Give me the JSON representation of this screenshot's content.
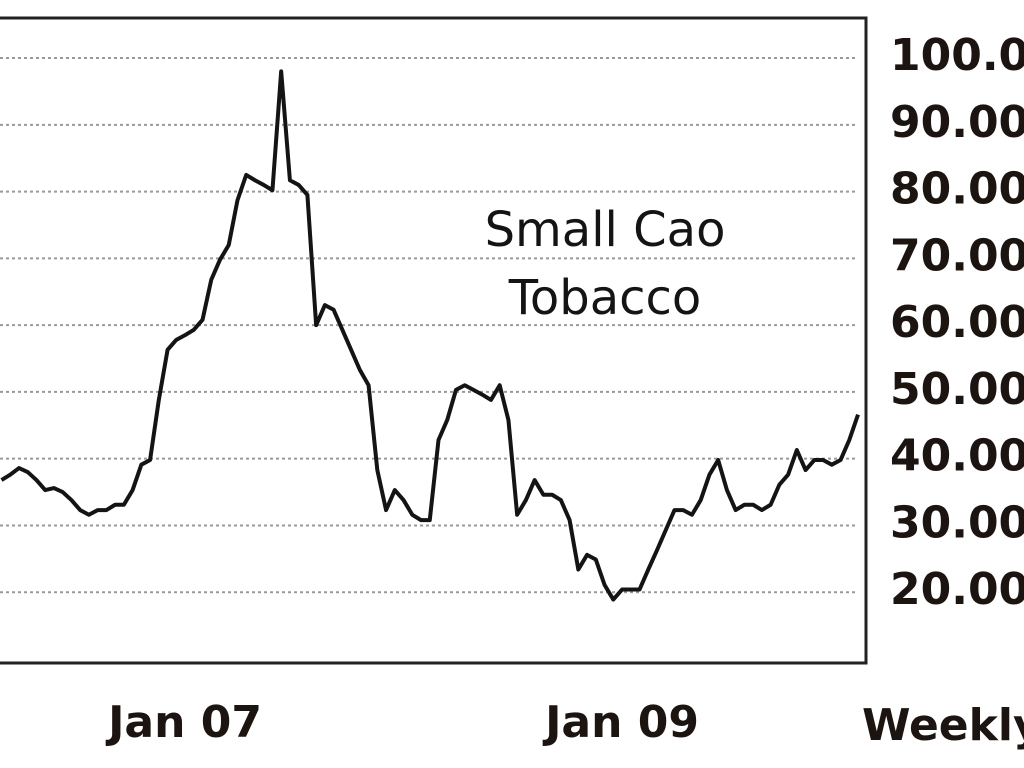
{
  "chart_data": {
    "type": "line",
    "title": "Small Cao Tobacco",
    "frequency_label": "Weekly",
    "categories": [
      null,
      null,
      null,
      null,
      null,
      null,
      null,
      null,
      null,
      null,
      null,
      null,
      null,
      null,
      null,
      null,
      null,
      null,
      null,
      null,
      null,
      "Jan 07",
      null,
      null,
      null,
      null,
      null,
      null,
      null,
      null,
      null,
      null,
      null,
      null,
      null,
      null,
      null,
      null,
      null,
      null,
      null,
      null,
      null,
      null,
      null,
      null,
      null,
      null,
      null,
      null,
      null,
      null,
      null,
      null,
      null,
      null,
      null,
      null,
      null,
      null,
      null,
      null,
      null,
      null,
      null,
      null,
      null,
      null,
      null,
      null,
      null,
      "Jan 09",
      null,
      null,
      null,
      null,
      null,
      null,
      null,
      null,
      null,
      null,
      null,
      null,
      null,
      null,
      null,
      null,
      null,
      null,
      null,
      null,
      null,
      null,
      null,
      null,
      null,
      null,
      null
    ],
    "series": [
      {
        "name": "Small Cao Tobacco",
        "color": "#141414",
        "values": [
          36.8,
          37.6,
          38.6,
          38.0,
          36.8,
          35.3,
          35.6,
          35.0,
          33.8,
          32.3,
          31.6,
          32.3,
          32.3,
          33.1,
          33.1,
          35.3,
          39.1,
          39.8,
          48.8,
          56.3,
          57.8,
          58.5,
          59.3,
          60.8,
          66.8,
          69.8,
          72.0,
          78.7,
          82.5,
          81.7,
          81.0,
          80.2,
          98.0,
          81.7,
          81.0,
          79.5,
          60.0,
          63.0,
          62.3,
          59.3,
          56.3,
          53.3,
          51.0,
          38.3,
          32.3,
          35.3,
          33.8,
          31.6,
          30.8,
          30.8,
          42.8,
          45.8,
          50.3,
          51.0,
          50.3,
          49.6,
          48.8,
          51.0,
          45.8,
          31.6,
          33.8,
          36.8,
          34.6,
          34.6,
          33.8,
          30.8,
          23.4,
          25.6,
          24.9,
          21.1,
          18.9,
          20.4,
          20.4,
          20.4,
          23.4,
          26.3,
          29.3,
          32.3,
          32.3,
          31.6,
          33.8,
          37.6,
          39.8,
          35.3,
          32.3,
          33.1,
          33.1,
          32.3,
          33.1,
          36.1,
          37.6,
          41.3,
          38.3,
          39.8,
          39.8,
          39.1,
          39.8,
          42.8,
          46.6
        ]
      }
    ],
    "ylim": [
      9.4,
      106.0
    ],
    "yticks": [
      {
        "value": 100,
        "label": "100.0"
      },
      {
        "value": 90,
        "label": "90.00"
      },
      {
        "value": 80,
        "label": "80.00"
      },
      {
        "value": 70,
        "label": "70.00"
      },
      {
        "value": 60,
        "label": "60.00"
      },
      {
        "value": 50,
        "label": "50.00"
      },
      {
        "value": 40,
        "label": "40.00"
      },
      {
        "value": 30,
        "label": "30.00"
      },
      {
        "value": 20,
        "label": "20.00"
      }
    ],
    "grid": true
  }
}
